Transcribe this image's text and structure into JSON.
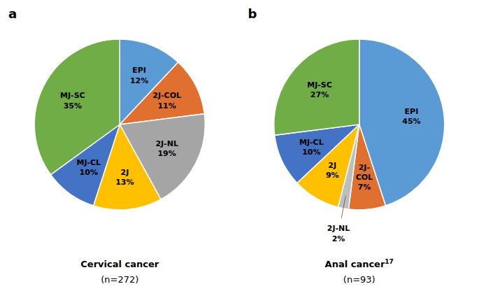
{
  "chart_data": [
    {
      "type": "pie",
      "panel_label": "a",
      "title": "Cervical cancer",
      "subtitle": "(n=272)",
      "categories": [
        "EPI",
        "2J-COL",
        "2J-NL",
        "2J",
        "MJ-CL",
        "MJ-SC"
      ],
      "values": [
        12,
        11,
        19,
        13,
        10,
        35
      ],
      "value_labels": [
        "12%",
        "11%",
        "19%",
        "13%",
        "10%",
        "35%"
      ],
      "colors": [
        "#5B9BD5",
        "#E07030",
        "#A5A5A5",
        "#FFC000",
        "#4472C4",
        "#70AD47"
      ],
      "data_labels": true
    },
    {
      "type": "pie",
      "panel_label": "b",
      "title": "Anal cancer",
      "title_superscript": "17",
      "subtitle": "(n=93)",
      "categories": [
        "EPI",
        "2J-\nCOL",
        "2J-NL",
        "2J",
        "MJ-CL",
        "MJ-SC"
      ],
      "values": [
        45,
        7,
        2,
        9,
        10,
        27
      ],
      "value_labels": [
        "45%",
        "7%",
        "2%",
        "9%",
        "10%",
        "27%"
      ],
      "colors": [
        "#5B9BD5",
        "#E07030",
        "#BEBEBE",
        "#FFC000",
        "#4472C4",
        "#70AD47"
      ],
      "data_labels": true
    }
  ]
}
